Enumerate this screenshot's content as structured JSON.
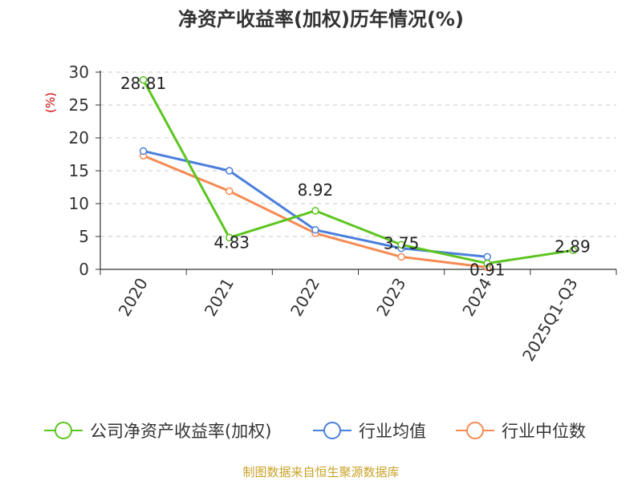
{
  "chart_data": {
    "type": "line",
    "title": "净资产收益率(加权)历年情况(%)",
    "ylabel": "(%)",
    "xlabel": "",
    "categories": [
      "2020",
      "2021",
      "2022",
      "2023",
      "2024",
      "2025Q1-Q3"
    ],
    "ylim": [
      0,
      30
    ],
    "yticks": [
      0,
      5,
      10,
      15,
      20,
      25,
      30
    ],
    "grid": true,
    "legend_position": "bottom",
    "series": [
      {
        "name": "公司净资产收益率(加权)",
        "color": "#5cc51f",
        "values": [
          28.81,
          4.83,
          8.92,
          3.75,
          0.91,
          2.89
        ],
        "labels": [
          "28.81",
          "4.83",
          "8.92",
          "3.75",
          "0.91",
          "2.89"
        ]
      },
      {
        "name": "行业均值",
        "color": "#4a7fdc",
        "values": [
          18.0,
          15.0,
          6.0,
          3.2,
          1.9,
          null
        ]
      },
      {
        "name": "行业中位数",
        "color": "#f58a52",
        "values": [
          17.3,
          11.9,
          5.5,
          1.9,
          0.3,
          null
        ]
      }
    ]
  },
  "source": "制图数据来自恒生聚源数据库"
}
